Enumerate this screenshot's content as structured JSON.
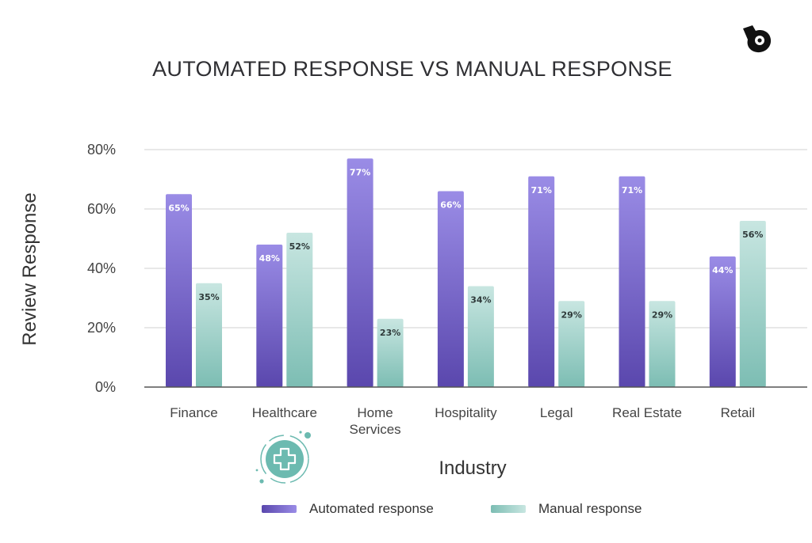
{
  "chart_data": {
    "type": "bar",
    "title": "AUTOMATED RESPONSE VS MANUAL RESPONSE",
    "xlabel": "Industry",
    "ylabel": "Review Response",
    "ylim": [
      0,
      80
    ],
    "yticks": [
      "0%",
      "20%",
      "40%",
      "60%",
      "80%"
    ],
    "grid": true,
    "legend_position": "bottom",
    "categories": [
      "Finance",
      "Healthcare",
      "Home\nServices",
      "Hospitality",
      "Legal",
      "Real Estate",
      "Retail"
    ],
    "series": [
      {
        "name": "Automated response",
        "values": [
          65,
          48,
          77,
          66,
          71,
          71,
          44
        ],
        "labels": [
          "65%",
          "48%",
          "77%",
          "66%",
          "71%",
          "71%",
          "44%"
        ],
        "color_top": "#9a8ce6",
        "color_bottom": "#5a47ad"
      },
      {
        "name": "Manual response",
        "values": [
          35,
          52,
          23,
          34,
          29,
          29,
          56
        ],
        "labels": [
          "35%",
          "52%",
          "23%",
          "34%",
          "29%",
          "29%",
          "56%"
        ],
        "color_top": "#c8e6e1",
        "color_bottom": "#7cbdb3"
      }
    ]
  },
  "colors": {
    "grid": "#d9d9d9",
    "axis": "#555555",
    "badge": "#6cbab0",
    "brand": "#111111"
  },
  "icons": {
    "brand": "bird-logo-icon",
    "badge": "medical-cross-icon"
  }
}
